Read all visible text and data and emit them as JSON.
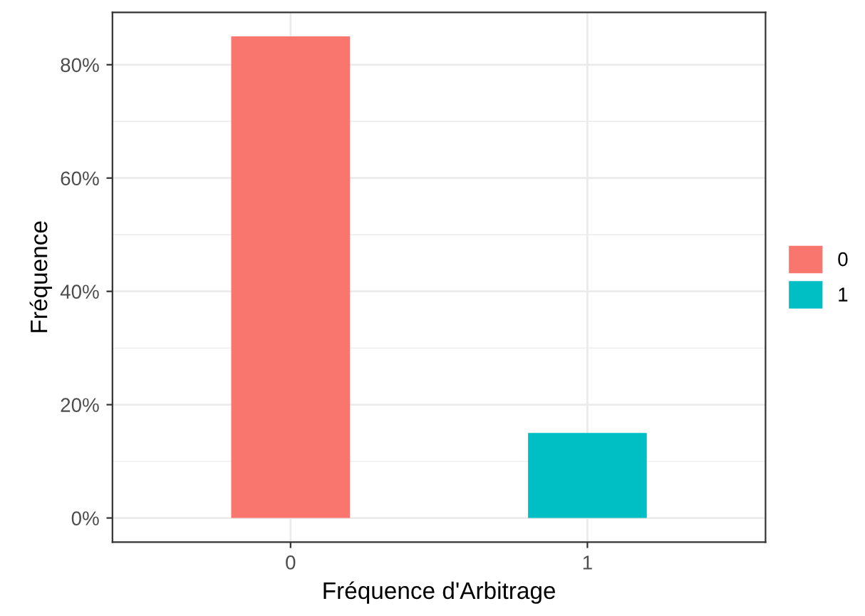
{
  "chart_data": {
    "type": "bar",
    "xlabel": "Fréquence d'Arbitrage",
    "ylabel": "Fréquence",
    "categories": [
      "0",
      "1"
    ],
    "series": [
      {
        "name": "0",
        "color": "#f8766d",
        "values": [
          85,
          null
        ]
      },
      {
        "name": "1",
        "color": "#00bfc4",
        "values": [
          null,
          15
        ]
      }
    ],
    "ylim": [
      -4.25,
      89.25
    ],
    "yticks": [
      {
        "value": 0,
        "label": "0%"
      },
      {
        "value": 20,
        "label": "20%"
      },
      {
        "value": 40,
        "label": "40%"
      },
      {
        "value": 60,
        "label": "60%"
      },
      {
        "value": 80,
        "label": "80%"
      }
    ],
    "grid": true,
    "legend": "right"
  }
}
